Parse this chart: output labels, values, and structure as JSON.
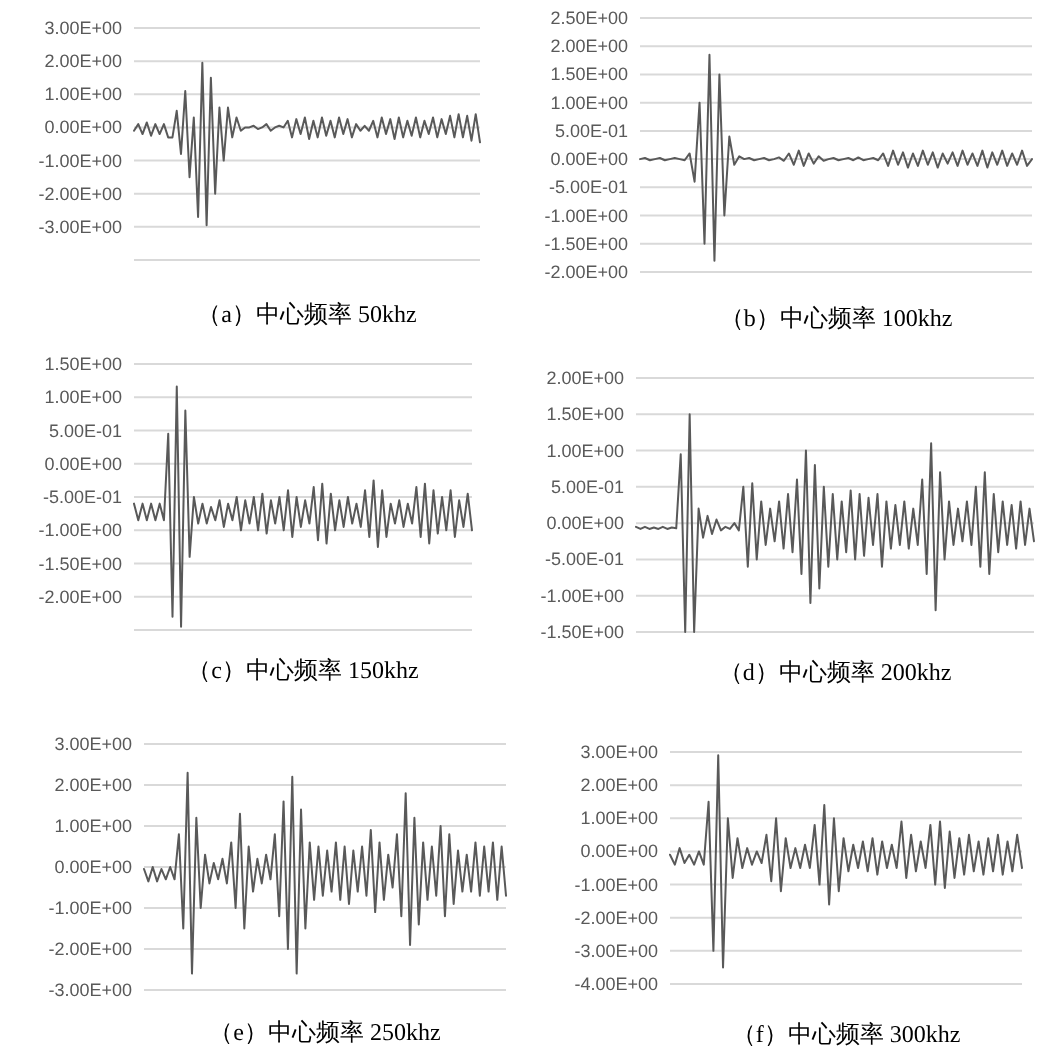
{
  "chart_data": [
    {
      "type": "line",
      "title": "（a）中心频率 50khz",
      "grid": "y",
      "tick_labels": "y",
      "ylim": [
        -4,
        3
      ],
      "yticks": [
        {
          "value": 3,
          "label": "3.00E+00"
        },
        {
          "value": 2,
          "label": "2.00E+00"
        },
        {
          "value": 1,
          "label": "1.00E+00"
        },
        {
          "value": 0,
          "label": "0.00E+00"
        },
        {
          "value": -1,
          "label": "-1.00E+00"
        },
        {
          "value": -2,
          "label": "-2.00E+00"
        },
        {
          "value": -3,
          "label": "-3.00E+00"
        },
        {
          "value": -4,
          "label": null
        }
      ],
      "categories": [
        null,
        null,
        null,
        null,
        null,
        null,
        null,
        null,
        null,
        null,
        null,
        null,
        null,
        null,
        null,
        null,
        null,
        null,
        null,
        null,
        null,
        null,
        null,
        null,
        null,
        null,
        null,
        null,
        null,
        null,
        null,
        null,
        null,
        null,
        null,
        null,
        null,
        null,
        null,
        null,
        null,
        null,
        null,
        null,
        null,
        null,
        null,
        null,
        null,
        null,
        null,
        null,
        null,
        null,
        null,
        null,
        null,
        null,
        null,
        null,
        null,
        null,
        null,
        null,
        null,
        null,
        null,
        null,
        null,
        null,
        null,
        null,
        null,
        null,
        null,
        null,
        null,
        null,
        null,
        null,
        null,
        null
      ],
      "series": [
        {
          "color": "#595959",
          "values": [
            -0.1,
            0.1,
            -0.2,
            0.15,
            -0.25,
            0.1,
            -0.2,
            0.1,
            -0.3,
            -0.3,
            0.5,
            -0.8,
            1.1,
            -1.5,
            0.3,
            -2.7,
            1.95,
            -2.95,
            1.5,
            -2.0,
            0.6,
            -1.0,
            0.6,
            -0.3,
            0.3,
            -0.1,
            0,
            0,
            0.05,
            -0.05,
            0,
            0.1,
            -0.1,
            0,
            0.05,
            0,
            0.2,
            -0.3,
            0.25,
            -0.2,
            0.3,
            -0.35,
            0.2,
            -0.3,
            0.3,
            -0.25,
            0.2,
            -0.3,
            0.3,
            -0.2,
            0.25,
            -0.3,
            0.1,
            -0.1,
            0.05,
            -0.1,
            0.2,
            -0.3,
            0.3,
            -0.2,
            0.25,
            -0.35,
            0.3,
            -0.3,
            0.2,
            -0.25,
            0.3,
            -0.3,
            0.2,
            -0.2,
            0.3,
            -0.3,
            0.25,
            -0.2,
            0.35,
            -0.3,
            0.4,
            -0.3,
            0.35,
            -0.4,
            0.4,
            -0.45
          ]
        }
      ]
    },
    {
      "type": "line",
      "title": "（b）中心频率 100khz",
      "grid": "y",
      "tick_labels": "y",
      "ylim": [
        -2,
        2.5
      ],
      "yticks": [
        {
          "value": 2.5,
          "label": "2.50E+00"
        },
        {
          "value": 2,
          "label": "2.00E+00"
        },
        {
          "value": 1.5,
          "label": "1.50E+00"
        },
        {
          "value": 1,
          "label": "1.00E+00"
        },
        {
          "value": 0.5,
          "label": "5.00E-01"
        },
        {
          "value": 0,
          "label": "0.00E+00"
        },
        {
          "value": -0.5,
          "label": "-5.00E-01"
        },
        {
          "value": -1,
          "label": "-1.00E+00"
        },
        {
          "value": -1.5,
          "label": "-1.50E+00"
        },
        {
          "value": -2,
          "label": "-2.00E+00"
        }
      ],
      "categories": [
        null,
        null,
        null,
        null,
        null,
        null,
        null,
        null,
        null,
        null,
        null,
        null,
        null,
        null,
        null,
        null,
        null,
        null,
        null,
        null,
        null,
        null,
        null,
        null,
        null,
        null,
        null,
        null,
        null,
        null,
        null,
        null,
        null,
        null,
        null,
        null,
        null,
        null,
        null,
        null,
        null,
        null,
        null,
        null,
        null,
        null,
        null,
        null,
        null,
        null,
        null,
        null,
        null,
        null,
        null,
        null,
        null,
        null,
        null,
        null,
        null,
        null,
        null,
        null,
        null,
        null,
        null,
        null,
        null,
        null,
        null,
        null,
        null,
        null,
        null,
        null,
        null,
        null,
        null,
        null
      ],
      "series": [
        {
          "color": "#595959",
          "values": [
            0,
            0.02,
            -0.02,
            0,
            0.02,
            -0.02,
            0,
            0.02,
            0,
            -0.02,
            0.1,
            -0.4,
            1.0,
            -1.5,
            1.85,
            -1.8,
            1.5,
            -1.0,
            0.4,
            -0.1,
            0.05,
            0,
            0.02,
            -0.02,
            0,
            0.02,
            -0.02,
            0,
            0.03,
            -0.03,
            0.1,
            -0.1,
            0.15,
            -0.12,
            0.1,
            -0.08,
            0.05,
            -0.03,
            0,
            0.02,
            -0.02,
            0,
            0.02,
            -0.02,
            0.03,
            -0.02,
            0,
            0.02,
            -0.02,
            0.1,
            -0.12,
            0.15,
            -0.1,
            0.12,
            -0.15,
            0.1,
            -0.12,
            0.15,
            -0.1,
            0.12,
            -0.15,
            0.1,
            -0.08,
            0.12,
            -0.12,
            0.15,
            -0.1,
            0.1,
            -0.12,
            0.15,
            -0.15,
            0.12,
            -0.1,
            0.15,
            -0.12,
            0.1,
            -0.1,
            0.15,
            -0.12,
            0
          ]
        }
      ]
    },
    {
      "type": "line",
      "title": "（c）中心频率 150khz",
      "grid": "y",
      "tick_labels": "y",
      "ylim": [
        -2.5,
        1.5
      ],
      "yticks": [
        {
          "value": 1.5,
          "label": "1.50E+00"
        },
        {
          "value": 1,
          "label": "1.00E+00"
        },
        {
          "value": 0.5,
          "label": "5.00E-01"
        },
        {
          "value": 0,
          "label": "0.00E+00"
        },
        {
          "value": -0.5,
          "label": "-5.00E-01"
        },
        {
          "value": -1,
          "label": "-1.00E+00"
        },
        {
          "value": -1.5,
          "label": "-1.50E+00"
        },
        {
          "value": -2,
          "label": "-2.00E+00"
        },
        {
          "value": -2.5,
          "label": null
        }
      ],
      "categories": [
        null,
        null,
        null,
        null,
        null,
        null,
        null,
        null,
        null,
        null,
        null,
        null,
        null,
        null,
        null,
        null,
        null,
        null,
        null,
        null,
        null,
        null,
        null,
        null,
        null,
        null,
        null,
        null,
        null,
        null,
        null,
        null,
        null,
        null,
        null,
        null,
        null,
        null,
        null,
        null,
        null,
        null,
        null,
        null,
        null,
        null,
        null,
        null,
        null,
        null,
        null,
        null,
        null,
        null,
        null,
        null,
        null,
        null,
        null,
        null,
        null,
        null,
        null,
        null,
        null,
        null,
        null,
        null,
        null,
        null,
        null,
        null,
        null,
        null,
        null,
        null,
        null,
        null,
        null,
        null
      ],
      "series": [
        {
          "color": "#595959",
          "values": [
            -0.6,
            -0.85,
            -0.6,
            -0.85,
            -0.6,
            -0.85,
            -0.6,
            -0.85,
            0.45,
            -2.3,
            1.16,
            -2.45,
            0.8,
            -1.4,
            -0.5,
            -0.9,
            -0.6,
            -0.9,
            -0.65,
            -0.85,
            -0.55,
            -0.95,
            -0.6,
            -0.85,
            -0.5,
            -1.0,
            -0.55,
            -0.9,
            -0.5,
            -1.0,
            -0.45,
            -1.05,
            -0.55,
            -0.9,
            -0.5,
            -1.0,
            -0.4,
            -1.1,
            -0.5,
            -0.95,
            -0.55,
            -0.9,
            -0.35,
            -1.15,
            -0.3,
            -1.2,
            -0.45,
            -1.0,
            -0.55,
            -0.95,
            -0.5,
            -0.9,
            -0.6,
            -0.95,
            -0.4,
            -1.1,
            -0.25,
            -1.25,
            -0.4,
            -1.1,
            -0.6,
            -0.9,
            -0.55,
            -0.95,
            -0.6,
            -0.9,
            -0.35,
            -1.1,
            -0.3,
            -1.2,
            -0.4,
            -1.05,
            -0.5,
            -1.0,
            -0.4,
            -1.1,
            -0.55,
            -0.95,
            -0.45,
            -1.0
          ]
        }
      ]
    },
    {
      "type": "line",
      "title": "（d）中心频率 200khz",
      "grid": "y",
      "tick_labels": "y",
      "ylim": [
        -1.5,
        2
      ],
      "yticks": [
        {
          "value": 2,
          "label": "2.00E+00"
        },
        {
          "value": 1.5,
          "label": "1.50E+00"
        },
        {
          "value": 1,
          "label": "1.00E+00"
        },
        {
          "value": 0.5,
          "label": "5.00E-01"
        },
        {
          "value": 0,
          "label": "0.00E+00"
        },
        {
          "value": -0.5,
          "label": "-5.00E-01"
        },
        {
          "value": -1,
          "label": "-1.00E+00"
        },
        {
          "value": -1.5,
          "label": "-1.50E+00"
        }
      ],
      "categories": [
        null,
        null,
        null,
        null,
        null,
        null,
        null,
        null,
        null,
        null,
        null,
        null,
        null,
        null,
        null,
        null,
        null,
        null,
        null,
        null,
        null,
        null,
        null,
        null,
        null,
        null,
        null,
        null,
        null,
        null,
        null,
        null,
        null,
        null,
        null,
        null,
        null,
        null,
        null,
        null,
        null,
        null,
        null,
        null,
        null,
        null,
        null,
        null,
        null,
        null,
        null,
        null,
        null,
        null,
        null,
        null,
        null,
        null,
        null,
        null,
        null,
        null,
        null,
        null,
        null,
        null,
        null,
        null,
        null,
        null,
        null,
        null,
        null,
        null,
        null,
        null,
        null,
        null,
        null,
        null,
        null,
        null,
        null,
        null,
        null,
        null,
        null,
        null,
        null,
        null
      ],
      "series": [
        {
          "color": "#595959",
          "values": [
            -0.05,
            -0.08,
            -0.05,
            -0.08,
            -0.06,
            -0.08,
            -0.05,
            -0.08,
            -0.06,
            -0.07,
            0.95,
            -1.5,
            1.5,
            -1.5,
            0.2,
            -0.2,
            0.1,
            -0.15,
            0.05,
            -0.1,
            -0.05,
            -0.08,
            0,
            -0.1,
            0.5,
            -0.6,
            0.55,
            -0.5,
            0.3,
            -0.3,
            0.2,
            -0.25,
            0.3,
            -0.35,
            0.4,
            -0.4,
            0.6,
            -0.7,
            1.0,
            -1.1,
            0.8,
            -0.9,
            0.5,
            -0.6,
            0.4,
            -0.5,
            0.3,
            -0.4,
            0.45,
            -0.5,
            0.4,
            -0.45,
            0.35,
            -0.3,
            0.4,
            -0.6,
            0.3,
            -0.35,
            0.25,
            -0.3,
            0.3,
            -0.35,
            0.2,
            -0.3,
            0.6,
            -0.7,
            1.1,
            -1.2,
            0.7,
            -0.5,
            0.3,
            -0.3,
            0.2,
            -0.25,
            0.3,
            -0.3,
            0.5,
            -0.6,
            0.7,
            -0.7,
            0.4,
            -0.4,
            0.3,
            -0.3,
            0.25,
            -0.35,
            0.3,
            -0.3,
            0.2,
            -0.25
          ]
        }
      ]
    },
    {
      "type": "line",
      "title": "（e）中心频率 250khz",
      "grid": "y",
      "tick_labels": "y",
      "ylim": [
        -3,
        3
      ],
      "yticks": [
        {
          "value": 3,
          "label": "3.00E+00"
        },
        {
          "value": 2,
          "label": "2.00E+00"
        },
        {
          "value": 1,
          "label": "1.00E+00"
        },
        {
          "value": 0,
          "label": "0.00E+00"
        },
        {
          "value": -1,
          "label": "-1.00E+00"
        },
        {
          "value": -2,
          "label": "-2.00E+00"
        },
        {
          "value": -3,
          "label": "-3.00E+00"
        }
      ],
      "categories": [
        null,
        null,
        null,
        null,
        null,
        null,
        null,
        null,
        null,
        null,
        null,
        null,
        null,
        null,
        null,
        null,
        null,
        null,
        null,
        null,
        null,
        null,
        null,
        null,
        null,
        null,
        null,
        null,
        null,
        null,
        null,
        null,
        null,
        null,
        null,
        null,
        null,
        null,
        null,
        null,
        null,
        null,
        null,
        null,
        null,
        null,
        null,
        null,
        null,
        null,
        null,
        null,
        null,
        null,
        null,
        null,
        null,
        null,
        null,
        null,
        null,
        null,
        null,
        null,
        null,
        null,
        null,
        null,
        null,
        null,
        null,
        null,
        null,
        null,
        null,
        null,
        null,
        null,
        null,
        null,
        null,
        null,
        null,
        null
      ],
      "series": [
        {
          "color": "#595959",
          "values": [
            -0.05,
            -0.35,
            0,
            -0.35,
            -0.05,
            -0.3,
            0,
            -0.3,
            0.8,
            -1.5,
            2.3,
            -2.6,
            1.2,
            -1.0,
            0.3,
            -0.4,
            0.1,
            -0.3,
            0.2,
            -0.4,
            0.6,
            -1.0,
            1.3,
            -1.5,
            0.5,
            -0.6,
            0.2,
            -0.4,
            0.3,
            -0.3,
            0.8,
            -1.2,
            1.6,
            -2.0,
            2.2,
            -2.6,
            1.4,
            -1.5,
            0.6,
            -0.8,
            0.5,
            -0.7,
            0.4,
            -0.6,
            0.6,
            -0.8,
            0.5,
            -0.9,
            0.4,
            -0.6,
            0.5,
            -0.7,
            0.9,
            -1.1,
            0.6,
            -0.8,
            0.3,
            -0.5,
            0.8,
            -1.2,
            1.8,
            -1.9,
            1.2,
            -1.4,
            0.6,
            -0.8,
            0.5,
            -0.7,
            1.0,
            -1.2,
            0.8,
            -0.9,
            0.4,
            -0.6,
            0.3,
            -0.6,
            0.6,
            -0.7,
            0.5,
            -0.6,
            0.6,
            -0.8,
            0.5,
            -0.7
          ]
        }
      ]
    },
    {
      "type": "line",
      "title": "（f）中心频率 300khz",
      "grid": "y",
      "tick_labels": "y",
      "ylim": [
        -4,
        3
      ],
      "yticks": [
        {
          "value": 3,
          "label": "3.00E+00"
        },
        {
          "value": 2,
          "label": "2.00E+00"
        },
        {
          "value": 1,
          "label": "1.00E+00"
        },
        {
          "value": 0,
          "label": "0.00E+00"
        },
        {
          "value": -1,
          "label": "-1.00E+00"
        },
        {
          "value": -2,
          "label": "-2.00E+00"
        },
        {
          "value": -3,
          "label": "-3.00E+00"
        },
        {
          "value": -4,
          "label": "-4.00E+00"
        }
      ],
      "categories": [
        null,
        null,
        null,
        null,
        null,
        null,
        null,
        null,
        null,
        null,
        null,
        null,
        null,
        null,
        null,
        null,
        null,
        null,
        null,
        null,
        null,
        null,
        null,
        null,
        null,
        null,
        null,
        null,
        null,
        null,
        null,
        null,
        null,
        null,
        null,
        null,
        null,
        null,
        null,
        null,
        null,
        null,
        null,
        null,
        null,
        null,
        null,
        null,
        null,
        null,
        null,
        null,
        null,
        null,
        null,
        null,
        null,
        null,
        null,
        null,
        null,
        null,
        null,
        null,
        null,
        null,
        null,
        null,
        null,
        null,
        null,
        null,
        null,
        null
      ],
      "series": [
        {
          "color": "#595959",
          "values": [
            -0.1,
            -0.4,
            0.1,
            -0.35,
            -0.1,
            -0.4,
            0,
            -0.4,
            1.5,
            -3.0,
            2.9,
            -3.5,
            1.0,
            -0.8,
            0.4,
            -0.5,
            0.1,
            -0.4,
            0,
            -0.35,
            0.5,
            -0.9,
            1.0,
            -1.2,
            0.4,
            -0.5,
            0.1,
            -0.5,
            0.2,
            -0.5,
            0.8,
            -1.0,
            1.4,
            -1.6,
            1.0,
            -1.2,
            0.4,
            -0.6,
            0.2,
            -0.5,
            0.3,
            -0.6,
            0.4,
            -0.7,
            0.3,
            -0.5,
            0.2,
            -0.5,
            0.9,
            -0.8,
            0.5,
            -0.6,
            0.3,
            -0.5,
            0.8,
            -1.0,
            0.9,
            -1.1,
            0.6,
            -0.8,
            0.4,
            -0.7,
            0.5,
            -0.6,
            0.3,
            -0.7,
            0.4,
            -0.6,
            0.5,
            -0.7,
            0.3,
            -0.6,
            0.5,
            -0.5
          ]
        }
      ]
    }
  ]
}
